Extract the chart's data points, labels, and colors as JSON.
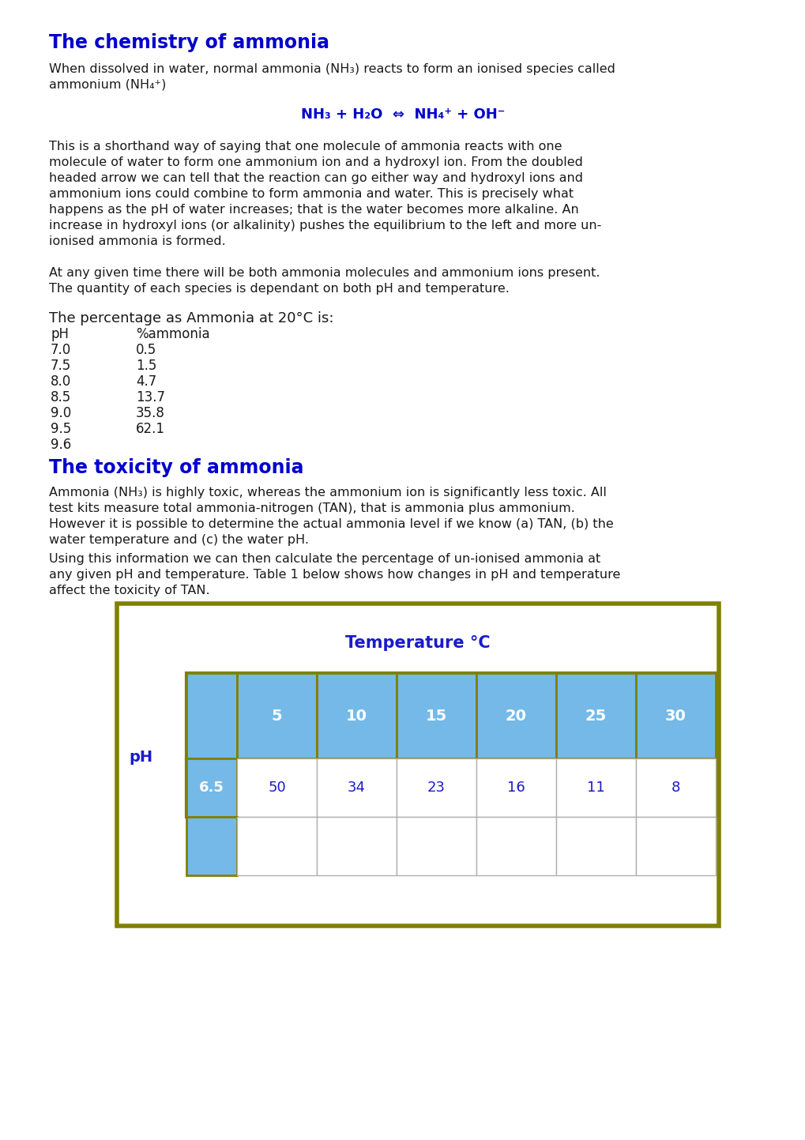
{
  "title_chemistry": "The chemistry of ammonia",
  "title_toxicity": "The toxicity of ammonia",
  "blue_color": "#0000cc",
  "body_text_color": "#1a1a1a",
  "background": "#ffffff",
  "equation": "NH₃ + H₂O  ⇔  NH₄⁺ + OH⁻",
  "table_header": "The percentage as Ammonia at 20°C is:",
  "ph_values": [
    "pH",
    "7.0",
    "7.5",
    "8.0",
    "8.5",
    "9.0",
    "9.5",
    "9.6"
  ],
  "ammonia_values": [
    "%ammonia",
    "0.5",
    "1.5",
    "4.7",
    "13.7",
    "35.8",
    "62.1",
    ""
  ],
  "temp_title": "Temperature °C",
  "temp_values": [
    "5",
    "10",
    "15",
    "20",
    "25",
    "30"
  ],
  "ph_row": "6.5",
  "data_values": [
    "50",
    "34",
    "23",
    "16",
    "11",
    "8"
  ],
  "cell_blue": "#74b9e8",
  "border_olive": "#808000",
  "border_gray": "#b0b0b0",
  "ph_label": "pH",
  "white": "#ffffff",
  "navy": "#1a1acc",
  "para1_line1": "When dissolved in water, normal ammonia (NH₃) reacts to form an ionised species called",
  "para1_line2": "ammonium (NH₄⁺)",
  "para2_lines": [
    "This is a shorthand way of saying that one molecule of ammonia reacts with one",
    "molecule of water to form one ammonium ion and a hydroxyl ion. From the doubled",
    "headed arrow we can tell that the reaction can go either way and hydroxyl ions and",
    "ammonium ions could combine to form ammonia and water. This is precisely what",
    "happens as the pH of water increases; that is the water becomes more alkaline. An",
    "increase in hydroxyl ions (or alkalinity) pushes the equilibrium to the left and more un-",
    "ionised ammonia is formed."
  ],
  "para3_lines": [
    "At any given time there will be both ammonia molecules and ammonium ions present.",
    "The quantity of each species is dependant on both pH and temperature."
  ],
  "tox_para1_lines": [
    "Ammonia (NH₃) is highly toxic, whereas the ammonium ion is significantly less toxic. All",
    "test kits measure total ammonia-nitrogen (TAN), that is ammonia plus ammonium.",
    "However it is possible to determine the actual ammonia level if we know (a) TAN, (b) the",
    "water temperature and (c) the water pH."
  ],
  "tox_para2_lines": [
    "Using this information we can then calculate the percentage of un-ionised ammonia at",
    "any given pH and temperature. Table 1 below shows how changes in pH and temperature",
    "affect the toxicity of TAN."
  ]
}
